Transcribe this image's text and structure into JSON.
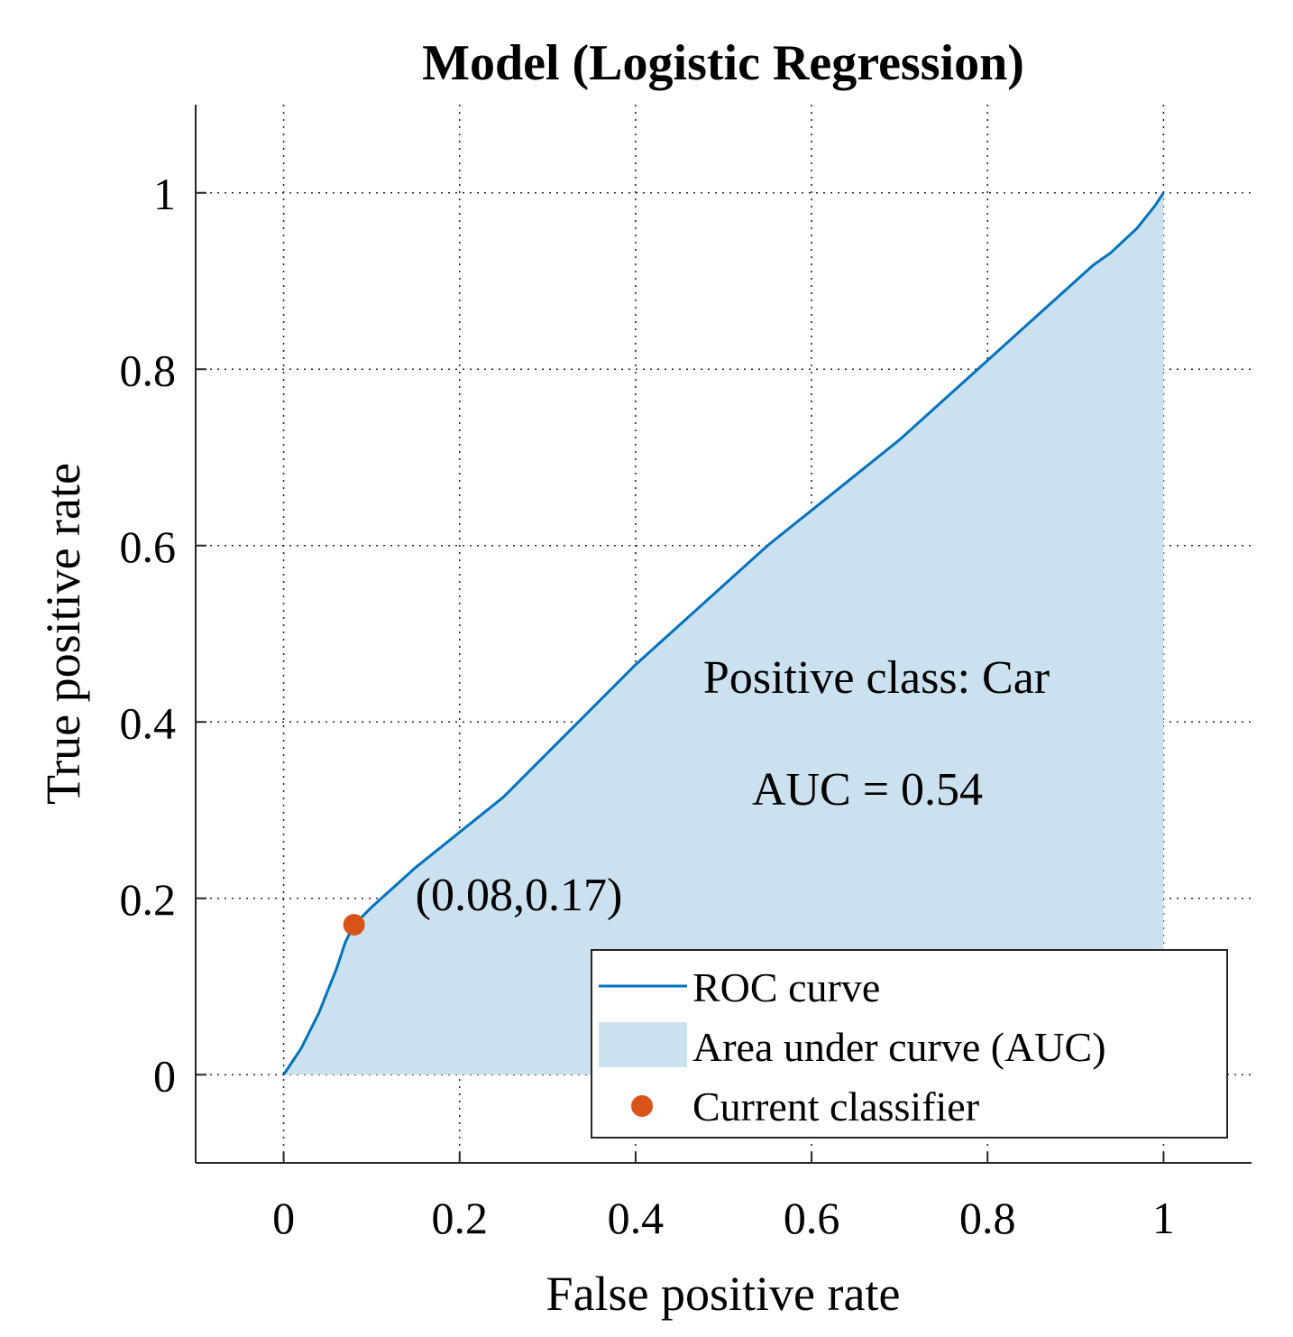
{
  "colors": {
    "roc_line": "#0072BD",
    "auc_fill": "#CBE1F0",
    "classifier_point": "#D95319"
  },
  "chart_data": {
    "type": "line",
    "title": "Model (Logistic Regression)",
    "xlabel": "False positive rate",
    "ylabel": "True positive rate",
    "xlim": [
      -0.1,
      1.1
    ],
    "ylim": [
      -0.1,
      1.1
    ],
    "grid": true,
    "x_ticks": [
      0,
      0.2,
      0.4,
      0.6,
      0.8,
      1
    ],
    "x_tick_labels": [
      "0",
      "0.2",
      "0.4",
      "0.6",
      "0.8",
      "1"
    ],
    "y_ticks": [
      0,
      0.2,
      0.4,
      0.6,
      0.8,
      1
    ],
    "y_tick_labels": [
      "0",
      "0.2",
      "0.4",
      "0.6",
      "0.8",
      "1"
    ],
    "series": [
      {
        "name": "ROC curve",
        "x": [
          0,
          0.02,
          0.04,
          0.05,
          0.06,
          0.07,
          0.08,
          0.1,
          0.15,
          0.2,
          0.25,
          0.3,
          0.35,
          0.4,
          0.45,
          0.5,
          0.55,
          0.6,
          0.65,
          0.7,
          0.75,
          0.8,
          0.85,
          0.9,
          0.92,
          0.94,
          0.97,
          0.99,
          1.0
        ],
        "y": [
          0,
          0.03,
          0.07,
          0.095,
          0.12,
          0.15,
          0.17,
          0.19,
          0.235,
          0.275,
          0.315,
          0.365,
          0.415,
          0.465,
          0.51,
          0.555,
          0.6,
          0.64,
          0.68,
          0.72,
          0.765,
          0.81,
          0.855,
          0.9,
          0.918,
          0.932,
          0.96,
          0.985,
          1.0
        ]
      }
    ],
    "current_classifier": {
      "x": 0.08,
      "y": 0.17,
      "label": "(0.08,0.17)"
    },
    "annotations": {
      "positive_class": "Positive class: Car",
      "auc": "AUC = 0.54"
    },
    "legend": {
      "position": "bottom-right",
      "entries": [
        "ROC curve",
        "Area under curve (AUC)",
        "Current classifier"
      ]
    }
  }
}
